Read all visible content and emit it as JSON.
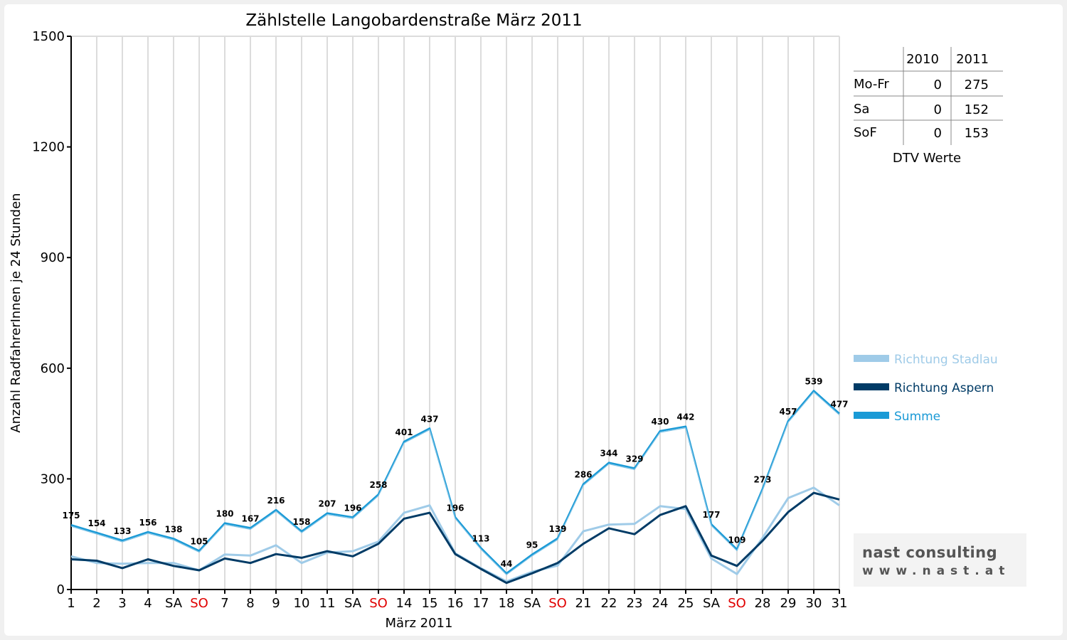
{
  "chart_data": {
    "type": "line",
    "title": "Zählstelle Langobardenstraße März 2011",
    "xlabel": "März 2011",
    "ylabel": "Anzahl RadfahrerInnen je 24 Stunden",
    "ylim": [
      0,
      1500
    ],
    "yticks": [
      0,
      300,
      600,
      900,
      1200,
      1500
    ],
    "grid": true,
    "legend_position": "right",
    "categories": [
      "1",
      "2",
      "3",
      "4",
      "SA",
      "SO",
      "7",
      "8",
      "9",
      "10",
      "11",
      "SA",
      "SO",
      "14",
      "15",
      "16",
      "17",
      "18",
      "SA",
      "SO",
      "21",
      "22",
      "23",
      "24",
      "25",
      "SA",
      "SO",
      "28",
      "29",
      "30",
      "31"
    ],
    "weekend_tick_colors": {
      "SA": "#000000",
      "SO": "#e00000"
    },
    "series": [
      {
        "name": "Richtung Stadlau",
        "color": "#9fcbe8",
        "values": [
          90,
          72,
          70,
          72,
          72,
          52,
          95,
          92,
          120,
          72,
          100,
          104,
          130,
          208,
          228,
          98,
          58,
          22,
          48,
          65,
          158,
          176,
          178,
          226,
          218,
          84,
          42,
          140,
          248,
          276,
          228
        ]
      },
      {
        "name": "Richtung Aspern",
        "color": "#003b66",
        "values": [
          82,
          78,
          58,
          82,
          64,
          52,
          84,
          72,
          96,
          86,
          104,
          90,
          124,
          192,
          208,
          96,
          56,
          18,
          44,
          72,
          124,
          166,
          150,
          202,
          226,
          92,
          64,
          132,
          210,
          262,
          244
        ]
      },
      {
        "name": "Summe",
        "color": "#1a9ad6",
        "values": [
          175,
          154,
          133,
          156,
          138,
          105,
          180,
          167,
          216,
          158,
          207,
          196,
          258,
          401,
          437,
          196,
          113,
          44,
          95,
          139,
          286,
          344,
          329,
          430,
          442,
          177,
          109,
          273,
          457,
          539,
          477
        ],
        "data_labels": true
      }
    ]
  },
  "dtv_table": {
    "caption": "DTV Werte",
    "columns": [
      "",
      "2010",
      "2011"
    ],
    "rows": [
      {
        "label": "Mo-Fr",
        "v2010": "0",
        "v2011": "275"
      },
      {
        "label": "Sa",
        "v2010": "0",
        "v2011": "152"
      },
      {
        "label": "SoF",
        "v2010": "0",
        "v2011": "153"
      }
    ]
  },
  "logo": {
    "main": "nast consulting",
    "sub": "www.nast.at"
  }
}
